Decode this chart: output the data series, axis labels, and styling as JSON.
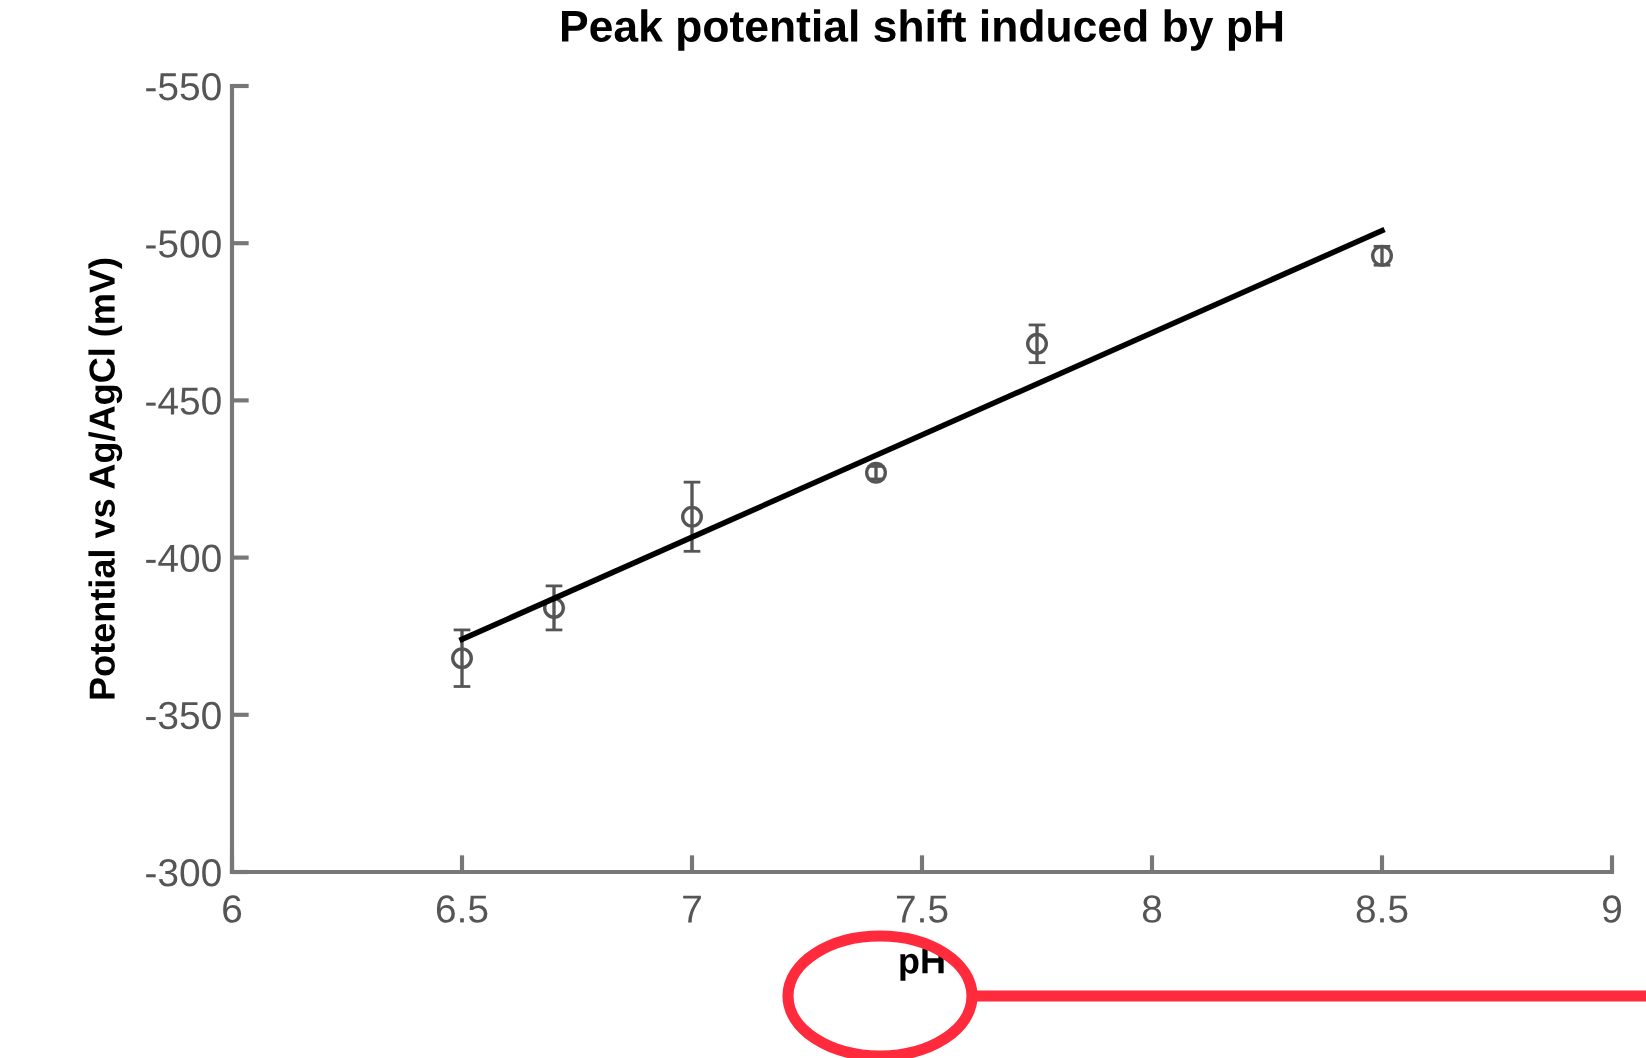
{
  "chart_data": {
    "type": "scatter",
    "title": "Peak potential shift induced by pH",
    "xlabel": "pH",
    "ylabel": "Potential vs Ag/AgCl (mV)",
    "xlim": [
      6,
      9
    ],
    "xticks": [
      6,
      6.5,
      7,
      7.5,
      8,
      8.5,
      9
    ],
    "ylim": [
      -300,
      -550
    ],
    "yticks": [
      -300,
      -350,
      -400,
      -450,
      -500,
      -550
    ],
    "grid": false,
    "marker": "circle",
    "series": [
      {
        "color": "#555555",
        "x": [
          6.5,
          6.7,
          7.0,
          7.4,
          7.75,
          8.5
        ],
        "values": [
          -368,
          -384,
          -413,
          -427,
          -468,
          -496
        ],
        "errors": [
          9,
          7,
          11,
          2,
          6,
          3
        ]
      },
      {
        "type": "line",
        "color": "#000000",
        "x": [
          6.5,
          8.5
        ],
        "values": [
          -374,
          -504
        ],
        "marker": "none",
        "line_style": "solid"
      }
    ]
  }
}
